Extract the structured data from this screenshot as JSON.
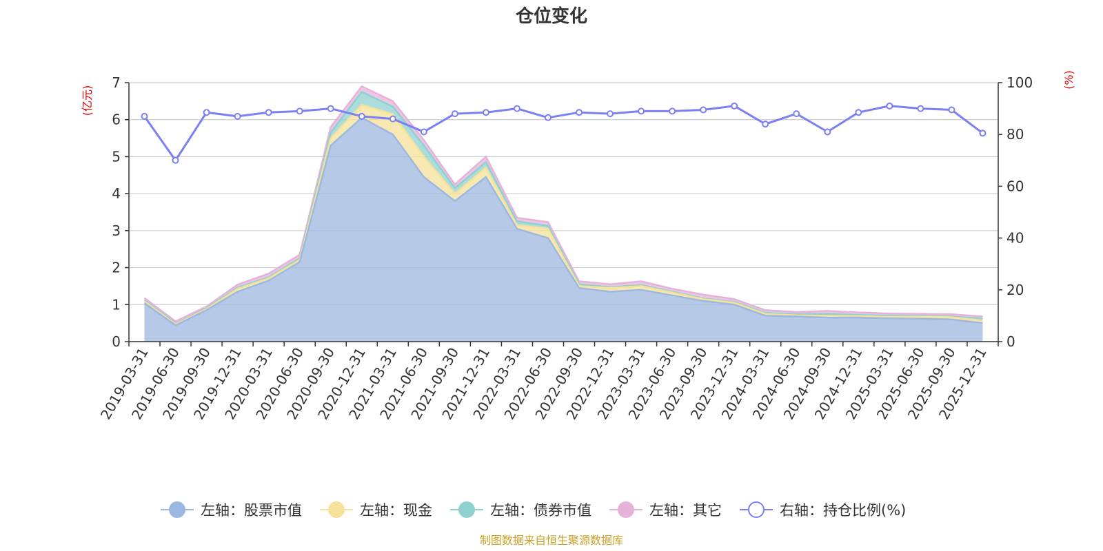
{
  "title": "仓位变化",
  "source": "制图数据来自恒生聚源数据库",
  "colors": {
    "stock": "#9db8e0",
    "cash": "#f5e19a",
    "bond": "#8fd1d1",
    "other": "#e5b3da",
    "ratio": "#7b7ff2",
    "axis_unit": "#e60000",
    "source": "#c9a227"
  },
  "chart_data": {
    "type": "area",
    "title": "仓位变化",
    "x": [
      "2019-03-31",
      "2019-06-30",
      "2019-09-30",
      "2019-12-31",
      "2020-03-31",
      "2020-06-30",
      "2020-09-30",
      "2020-12-31",
      "2021-03-31",
      "2021-06-30",
      "2021-09-30",
      "2021-12-31",
      "2022-03-31",
      "2022-06-30",
      "2022-09-30",
      "2022-12-31",
      "2023-03-31",
      "2023-06-30",
      "2023-09-30",
      "2023-12-31",
      "2024-03-31",
      "2024-06-30",
      "2024-09-30",
      "2024-12-31",
      "2025-03-31",
      "2025-06-30",
      "2025-09-30",
      "2025-12-31"
    ],
    "left_axis": {
      "unit": "(亿元)",
      "ylim": [
        0,
        7
      ],
      "ticks": [
        "0",
        "1",
        "2",
        "3",
        "4",
        "5",
        "6",
        "7"
      ]
    },
    "right_axis": {
      "unit": "(%)",
      "ylim": [
        0,
        100
      ],
      "ticks": [
        "0",
        "20",
        "40",
        "60",
        "80",
        "100"
      ]
    },
    "series": [
      {
        "name": "左轴：股票市值",
        "axis": "left",
        "stacked": true,
        "values": [
          1.04,
          0.44,
          0.85,
          1.35,
          1.65,
          2.15,
          5.3,
          6.05,
          5.6,
          4.45,
          3.8,
          4.45,
          3.05,
          2.8,
          1.45,
          1.35,
          1.4,
          1.25,
          1.1,
          1.0,
          0.7,
          0.68,
          0.65,
          0.65,
          0.63,
          0.62,
          0.6,
          0.5
        ]
      },
      {
        "name": "左轴：现金",
        "axis": "left",
        "stacked": true,
        "values": [
          0.05,
          0.03,
          0.03,
          0.08,
          0.06,
          0.06,
          0.2,
          0.35,
          0.55,
          0.55,
          0.2,
          0.25,
          0.1,
          0.25,
          0.05,
          0.1,
          0.1,
          0.08,
          0.05,
          0.05,
          0.05,
          0.03,
          0.05,
          0.04,
          0.04,
          0.05,
          0.06,
          0.07
        ]
      },
      {
        "name": "左轴：债券市值",
        "axis": "left",
        "stacked": true,
        "values": [
          0.03,
          0.02,
          0.02,
          0.03,
          0.03,
          0.04,
          0.15,
          0.35,
          0.2,
          0.3,
          0.15,
          0.15,
          0.1,
          0.08,
          0.05,
          0.02,
          0.03,
          0.02,
          0.02,
          0.02,
          0.03,
          0.03,
          0.05,
          0.03,
          0.03,
          0.02,
          0.02,
          0.05
        ]
      },
      {
        "name": "左轴：其它",
        "axis": "left",
        "stacked": true,
        "values": [
          0.06,
          0.06,
          0.05,
          0.08,
          0.1,
          0.1,
          0.15,
          0.15,
          0.15,
          0.15,
          0.1,
          0.15,
          0.1,
          0.1,
          0.08,
          0.08,
          0.1,
          0.08,
          0.1,
          0.08,
          0.07,
          0.06,
          0.08,
          0.07,
          0.06,
          0.06,
          0.06,
          0.06
        ]
      },
      {
        "name": "右轴：持仓比例(%)",
        "axis": "right",
        "type": "line",
        "values": [
          87,
          70,
          88.5,
          87,
          88.5,
          89,
          90,
          87,
          86,
          81,
          88,
          88.5,
          90,
          86.5,
          88.5,
          88,
          89,
          89,
          89.5,
          91,
          84,
          88,
          81,
          88.5,
          91,
          90,
          89.5,
          80.5
        ]
      }
    ],
    "legend_position": "bottom",
    "grid": true
  }
}
